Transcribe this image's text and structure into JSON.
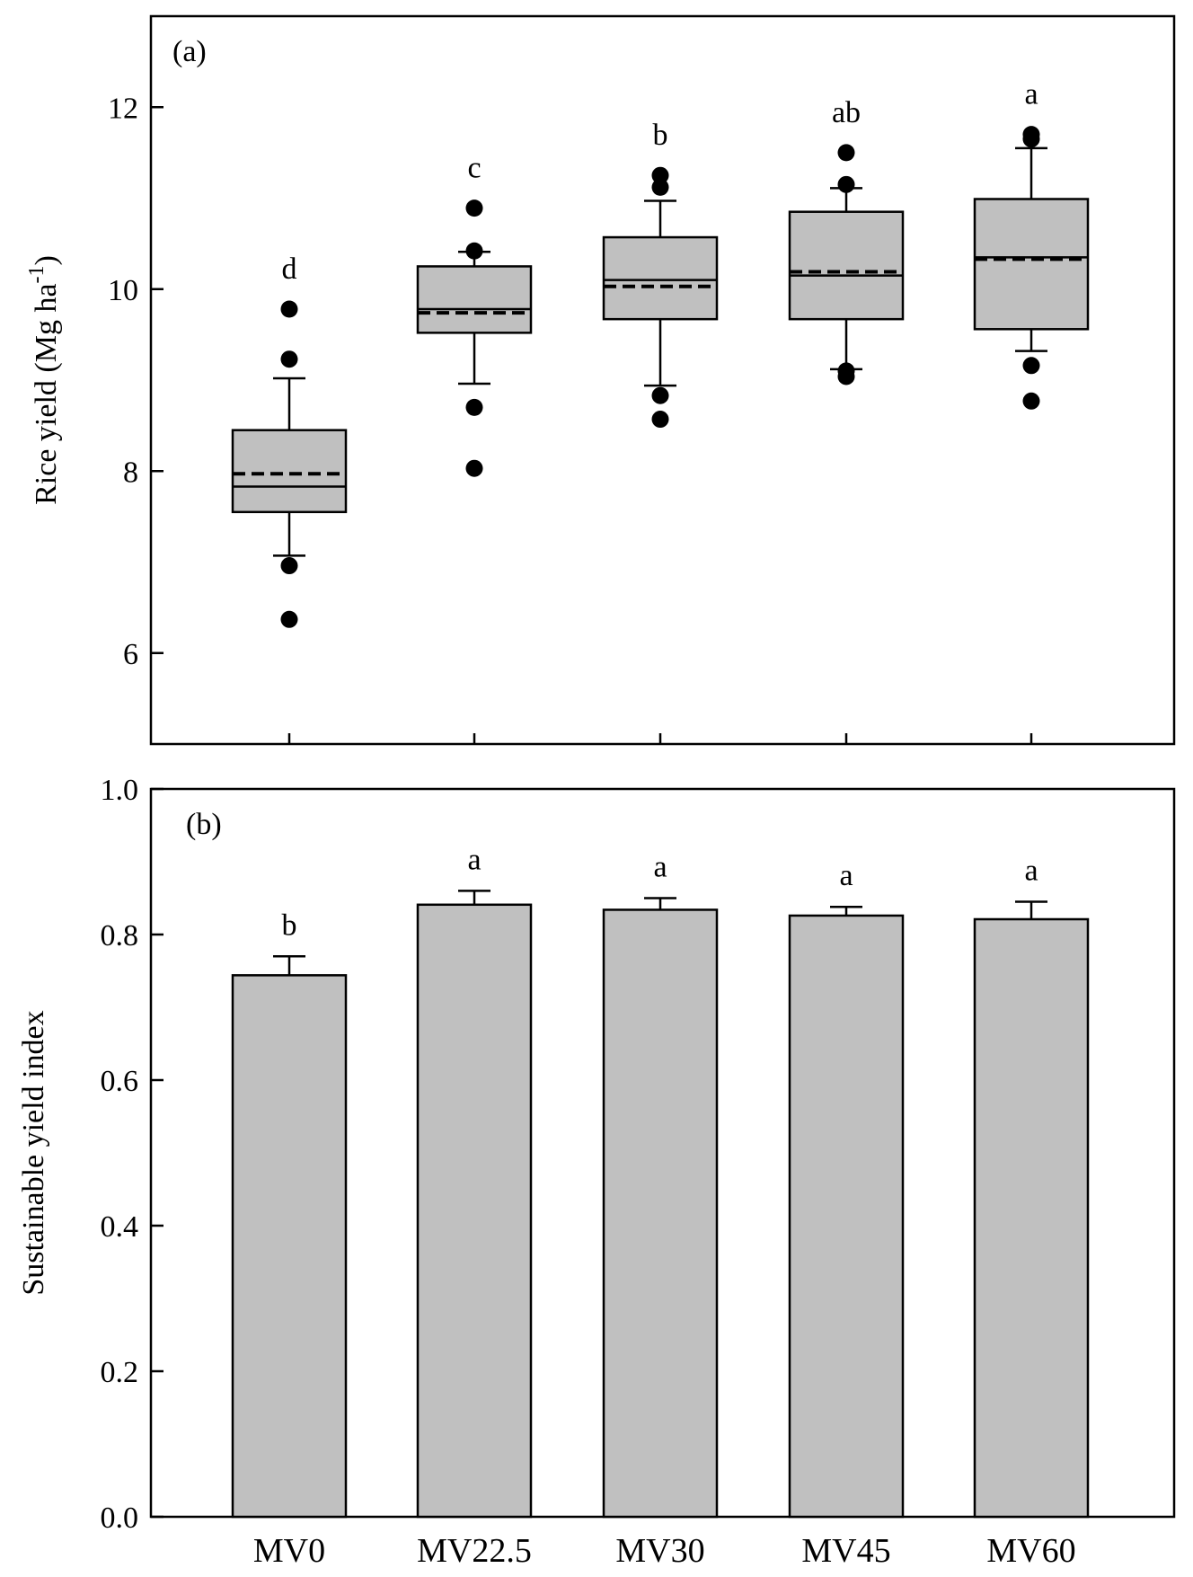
{
  "chart_data": [
    {
      "type": "box",
      "panel_label": "(a)",
      "ylabel": "Rice yield (Mg ha",
      "ylabel_sup": "-1",
      "ylabel_close": ")",
      "ylim": [
        5,
        13
      ],
      "yticks": [
        6,
        8,
        10,
        12
      ],
      "categories": [
        "MV0",
        "MV22.5",
        "MV30",
        "MV45",
        "MV60"
      ],
      "boxes": [
        {
          "name": "MV0",
          "whisker_low": 7.07,
          "q1": 7.55,
          "median": 7.83,
          "mean": 7.97,
          "q3": 8.45,
          "whisker_high": 9.02,
          "outliers": [
            9.78,
            9.23,
            6.96,
            6.37
          ],
          "letter": "d"
        },
        {
          "name": "MV22.5",
          "whisker_low": 8.96,
          "q1": 9.52,
          "median": 9.78,
          "mean": 9.74,
          "q3": 10.25,
          "whisker_high": 10.41,
          "outliers": [
            10.89,
            10.42,
            8.7,
            8.03
          ],
          "letter": "c"
        },
        {
          "name": "MV30",
          "whisker_low": 8.94,
          "q1": 9.67,
          "median": 10.1,
          "mean": 10.03,
          "q3": 10.57,
          "whisker_high": 10.97,
          "outliers": [
            11.25,
            11.12,
            8.83,
            8.57
          ],
          "letter": "b"
        },
        {
          "name": "MV45",
          "whisker_low": 9.12,
          "q1": 9.67,
          "median": 10.15,
          "mean": 10.19,
          "q3": 10.85,
          "whisker_high": 11.11,
          "outliers": [
            11.5,
            11.15,
            9.1,
            9.04
          ],
          "letter": "ab"
        },
        {
          "name": "MV60",
          "whisker_low": 9.32,
          "q1": 9.56,
          "median": 10.35,
          "mean": 10.33,
          "q3": 10.99,
          "whisker_high": 11.55,
          "outliers": [
            11.7,
            11.65,
            9.16,
            8.77
          ],
          "letter": "a"
        }
      ]
    },
    {
      "type": "bar",
      "panel_label": "(b)",
      "ylabel": "Sustainable yield index",
      "ylim": [
        0,
        1
      ],
      "yticks": [
        0.0,
        0.2,
        0.4,
        0.6,
        0.8,
        1.0
      ],
      "ytick_labels": [
        "0.0",
        "0.2",
        "0.4",
        "0.6",
        "0.8",
        "1.0"
      ],
      "categories": [
        "MV0",
        "MV22.5",
        "MV30",
        "MV45",
        "MV60"
      ],
      "values": [
        0.744,
        0.841,
        0.834,
        0.826,
        0.821
      ],
      "errors": [
        0.026,
        0.019,
        0.016,
        0.012,
        0.024
      ],
      "letters": [
        "b",
        "a",
        "a",
        "a",
        "a"
      ]
    }
  ],
  "colors": {
    "fill": "#c0c0c0",
    "ink": "#000000",
    "mean_dash_light": "#a8a8a8"
  }
}
